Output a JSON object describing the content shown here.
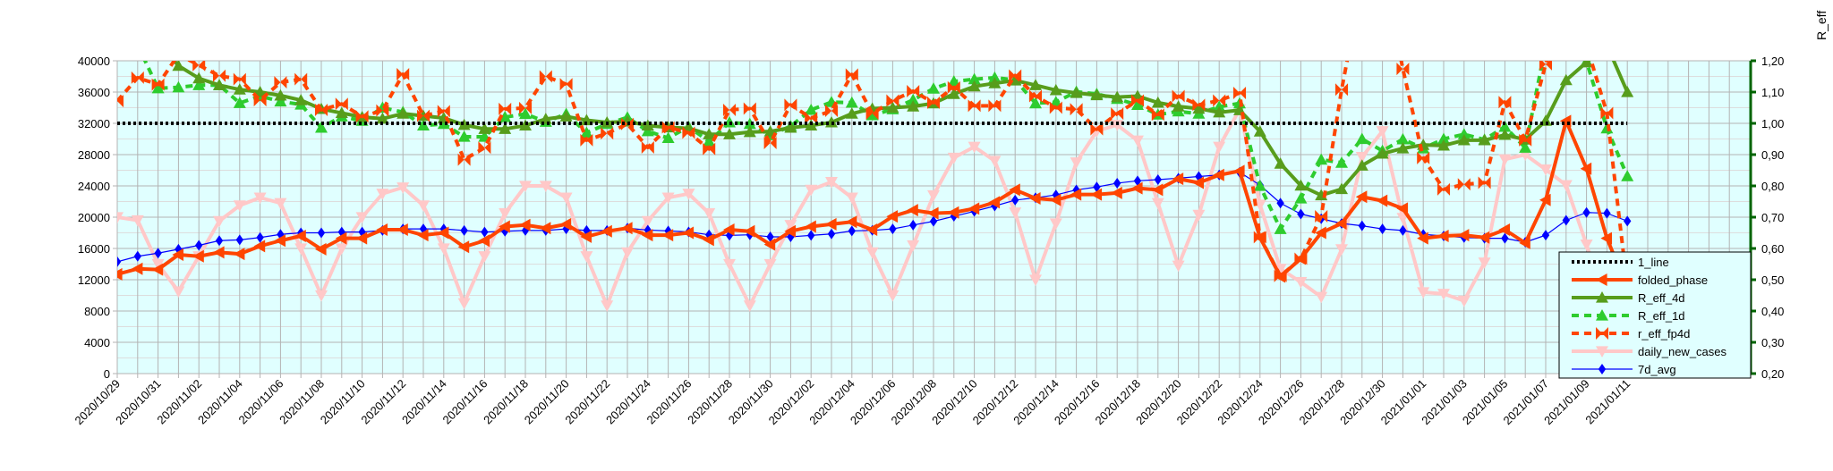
{
  "chart_data": {
    "type": "line",
    "title": "",
    "xlabel": "",
    "ylabel": "",
    "y2label": "R_eff",
    "ylim": [
      0,
      40000
    ],
    "y2lim": [
      0.2,
      1.2
    ],
    "yticks": [
      "0",
      "4000",
      "8000",
      "12000",
      "16000",
      "20000",
      "24000",
      "28000",
      "32000",
      "36000",
      "40000"
    ],
    "y2ticks": [
      "0,20",
      "0,30",
      "0,40",
      "0,50",
      "0,60",
      "0,70",
      "0,80",
      "0,90",
      "1,00",
      "1,10",
      "1,20"
    ],
    "grid": true,
    "legend_position": "bottom-right",
    "background": "#e0ffff",
    "x": [
      "2020/10/29",
      "2020/10/30",
      "2020/10/31",
      "2020/11/01",
      "2020/11/02",
      "2020/11/03",
      "2020/11/04",
      "2020/11/05",
      "2020/11/06",
      "2020/11/07",
      "2020/11/08",
      "2020/11/09",
      "2020/11/10",
      "2020/11/11",
      "2020/11/12",
      "2020/11/13",
      "2020/11/14",
      "2020/11/15",
      "2020/11/16",
      "2020/11/17",
      "2020/11/18",
      "2020/11/19",
      "2020/11/20",
      "2020/11/21",
      "2020/11/22",
      "2020/11/23",
      "2020/11/24",
      "2020/11/25",
      "2020/11/26",
      "2020/11/27",
      "2020/11/28",
      "2020/11/29",
      "2020/11/30",
      "2020/12/01",
      "2020/12/02",
      "2020/12/03",
      "2020/12/04",
      "2020/12/05",
      "2020/12/06",
      "2020/12/07",
      "2020/12/08",
      "2020/12/09",
      "2020/12/10",
      "2020/12/11",
      "2020/12/12",
      "2020/12/13",
      "2020/12/14",
      "2020/12/15",
      "2020/12/16",
      "2020/12/17",
      "2020/12/18",
      "2020/12/19",
      "2020/12/20",
      "2020/12/21",
      "2020/12/22",
      "2020/12/23",
      "2020/12/24",
      "2020/12/25",
      "2020/12/26",
      "2020/12/27",
      "2020/12/28",
      "2020/12/29",
      "2020/12/30",
      "2020/12/31",
      "2021/01/01",
      "2021/01/02",
      "2021/01/03",
      "2021/01/04",
      "2021/01/05",
      "2021/01/06",
      "2021/01/07",
      "2021/01/08",
      "2021/01/09",
      "2021/01/10",
      "2021/01/11"
    ],
    "series": [
      {
        "name": "1_line",
        "axis": "right",
        "color": "#000000",
        "style": "dotted",
        "marker": "none",
        "values": [
          1,
          1,
          1,
          1,
          1,
          1,
          1,
          1,
          1,
          1,
          1,
          1,
          1,
          1,
          1,
          1,
          1,
          1,
          1,
          1,
          1,
          1,
          1,
          1,
          1,
          1,
          1,
          1,
          1,
          1,
          1,
          1,
          1,
          1,
          1,
          1,
          1,
          1,
          1,
          1,
          1,
          1,
          1,
          1,
          1,
          1,
          1,
          1,
          1,
          1,
          1,
          1,
          1,
          1,
          1,
          1,
          1,
          1,
          1,
          1,
          1,
          1,
          1,
          1,
          1,
          1,
          1,
          1,
          1,
          1,
          1,
          1,
          1,
          1,
          1
        ]
      },
      {
        "name": "folded_phase",
        "axis": "left",
        "color": "#ff4500",
        "style": "solid",
        "marker": "tri-left",
        "values": [
          12700,
          13400,
          13300,
          15200,
          15000,
          15500,
          15300,
          16300,
          17000,
          17600,
          15900,
          17300,
          17300,
          18400,
          18400,
          17700,
          18000,
          16200,
          17000,
          18800,
          19000,
          18600,
          19100,
          17500,
          18200,
          18600,
          17700,
          17700,
          18000,
          17100,
          18400,
          18200,
          16500,
          18200,
          18800,
          19100,
          19400,
          18400,
          20100,
          20900,
          20500,
          20600,
          21100,
          21900,
          23500,
          22400,
          22200,
          22900,
          22900,
          23100,
          23700,
          23500,
          24900,
          24400,
          25400,
          25900,
          17400,
          12400,
          14700,
          18000,
          19200,
          22600,
          22100,
          21100,
          17300,
          17600,
          17700,
          17400,
          18400,
          16700,
          22200,
          32300,
          26200,
          17300,
          11000
        ]
      },
      {
        "name": "R_eff_4d",
        "axis": "right",
        "color": "#579d1c",
        "style": "solid",
        "marker": "tri-up",
        "values": [
          null,
          null,
          1.26,
          1.184,
          1.144,
          1.122,
          1.108,
          1.1,
          1.089,
          1.074,
          1.046,
          1.033,
          1.02,
          1.015,
          1.031,
          1.024,
          1.017,
          0.995,
          0.982,
          0.982,
          0.993,
          1.014,
          1.022,
          1.01,
          1.003,
          1.006,
          0.993,
          0.987,
          0.984,
          0.965,
          0.965,
          0.972,
          0.974,
          0.986,
          0.993,
          1.003,
          1.031,
          1.047,
          1.05,
          1.054,
          1.064,
          1.094,
          1.118,
          1.128,
          1.137,
          1.122,
          1.106,
          1.097,
          1.09,
          1.084,
          1.087,
          1.066,
          1.054,
          1.047,
          1.035,
          1.042,
          0.974,
          0.871,
          0.801,
          0.77,
          0.79,
          0.865,
          0.903,
          0.92,
          0.931,
          0.929,
          0.946,
          0.946,
          0.963,
          0.948,
          1.008,
          1.138,
          1.195,
          1.25,
          1.1
        ]
      },
      {
        "name": "R_eff_1d",
        "axis": "right",
        "color": "#2ecc2e",
        "style": "dashed",
        "marker": "tri-up",
        "values": [
          1.35,
          1.25,
          1.112,
          1.115,
          1.122,
          1.122,
          1.065,
          1.087,
          1.07,
          1.06,
          0.986,
          1.022,
          1.008,
          1.05,
          1.036,
          0.993,
          0.998,
          0.957,
          0.957,
          1.02,
          1.03,
          1.005,
          1.03,
          0.97,
          0.998,
          1.019,
          0.975,
          0.953,
          0.989,
          0.942,
          1.003,
          0.998,
          0.962,
          0.991,
          1.043,
          1.068,
          1.066,
          1.026,
          1.045,
          1.075,
          1.111,
          1.134,
          1.141,
          1.146,
          1.139,
          1.064,
          1.068,
          1.101,
          1.094,
          1.078,
          1.059,
          1.028,
          1.038,
          1.031,
          1.053,
          1.064,
          0.8,
          0.662,
          0.76,
          0.884,
          0.874,
          0.95,
          0.912,
          0.949,
          0.92,
          0.95,
          0.965,
          0.948,
          0.989,
          0.922,
          1.25,
          1.4,
          1.198,
          0.984,
          0.831
        ]
      },
      {
        "name": "r_eff_fp4d",
        "axis": "right",
        "color": "#ff4500",
        "style": "dashed",
        "marker": "bowtie",
        "values": [
          1.071,
          1.146,
          1.124,
          1.22,
          1.186,
          1.152,
          1.141,
          1.074,
          1.131,
          1.141,
          1.043,
          1.062,
          1.022,
          1.041,
          1.157,
          1.024,
          1.039,
          0.884,
          0.922,
          1.046,
          1.049,
          1.15,
          1.125,
          0.946,
          0.968,
          0.998,
          0.923,
          0.987,
          0.97,
          0.918,
          1.043,
          1.047,
          0.937,
          1.059,
          1.017,
          1.04,
          1.156,
          1.031,
          1.073,
          1.103,
          1.066,
          1.115,
          1.056,
          1.056,
          1.153,
          1.087,
          1.05,
          1.045,
          0.981,
          1.031,
          1.073,
          1.028,
          1.087,
          1.059,
          1.073,
          1.097,
          0.636,
          0.512,
          0.567,
          0.703,
          1.108,
          1.45,
          1.5,
          1.174,
          0.889,
          0.789,
          0.805,
          0.81,
          1.068,
          0.946,
          1.189,
          1.4,
          1.25,
          1.033,
          0.479
        ]
      },
      {
        "name": "daily_new_cases",
        "axis": "left",
        "color": "#ffc8c8",
        "style": "solid",
        "marker": "tri-down",
        "values": [
          20000,
          19600,
          14000,
          10500,
          15000,
          19500,
          21500,
          22500,
          21800,
          16000,
          10000,
          16000,
          20000,
          23000,
          23800,
          21500,
          16000,
          9000,
          15000,
          20500,
          24000,
          24000,
          22500,
          15000,
          8700,
          15500,
          19500,
          22500,
          23000,
          20500,
          14000,
          8700,
          14000,
          19000,
          23500,
          24500,
          22500,
          15500,
          10000,
          16400,
          22800,
          27600,
          29000,
          27200,
          20600,
          12000,
          19200,
          27000,
          31000,
          31800,
          29800,
          21800,
          13800,
          20300,
          29000,
          33800,
          21600,
          13400,
          11700,
          9800,
          15900,
          27700,
          31000,
          19900,
          10400,
          10200,
          9300,
          14200,
          27400,
          28000,
          26100,
          24100,
          16500,
          8500,
          7900
        ]
      },
      {
        "name": "7d_avg",
        "axis": "left",
        "color": "#0000ff",
        "style": "thin",
        "marker": "diamond",
        "values": [
          14300,
          15000,
          15400,
          15900,
          16400,
          17000,
          17100,
          17400,
          17800,
          18000,
          18000,
          18100,
          18100,
          18300,
          18500,
          18500,
          18500,
          18300,
          18100,
          18200,
          18300,
          18300,
          18500,
          18300,
          18300,
          18600,
          18350,
          18240,
          18120,
          17750,
          17670,
          17750,
          17490,
          17490,
          17670,
          17860,
          18240,
          18310,
          18500,
          18990,
          19470,
          20110,
          20750,
          21430,
          22180,
          22480,
          22850,
          23490,
          23860,
          24350,
          24650,
          24800,
          24990,
          25200,
          25400,
          25750,
          24100,
          21800,
          20400,
          19800,
          19200,
          18900,
          18500,
          18300,
          17800,
          17600,
          17400,
          17300,
          17300,
          16800,
          17700,
          19600,
          20600,
          20500,
          19500
        ]
      }
    ]
  }
}
